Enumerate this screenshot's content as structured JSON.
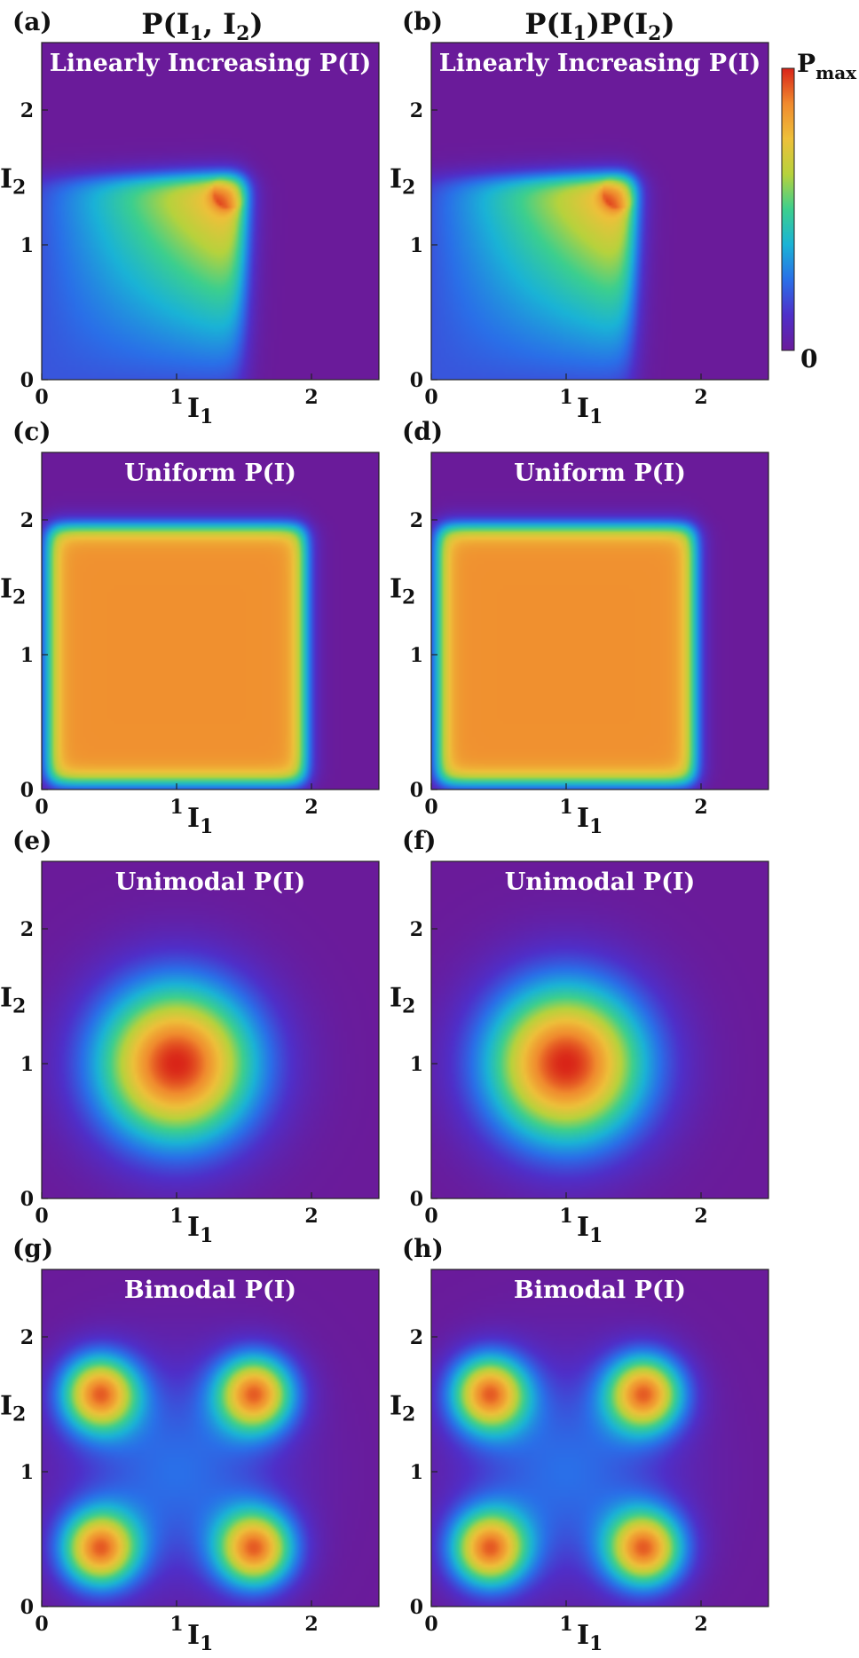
{
  "figure": {
    "column_titles": [
      "P(I₁, I₂)",
      "P(I₁)P(I₂)"
    ]
  },
  "colorbar": {
    "max_label": "Pmax",
    "min_label": "0",
    "colors": [
      "#6a1b9a",
      "#4f2fc9",
      "#2a6fe8",
      "#1ab3d6",
      "#3ccf8e",
      "#b7d23c",
      "#eec03a",
      "#f08a2e",
      "#d92418"
    ]
  },
  "chart_data": [
    {
      "type": "heatmap",
      "panel": "(a)",
      "subtitle": "Linearly Increasing P(I)",
      "xlabel": "I₁",
      "ylabel": "I₂",
      "xlim": [
        0,
        2.5
      ],
      "ylim": [
        0,
        2.5
      ],
      "xticks": [
        "0",
        "1",
        "2"
      ],
      "yticks": [
        "0",
        "1",
        "2"
      ],
      "distribution": "linear",
      "support": [
        0,
        1.5
      ],
      "peak": [
        1.35,
        1.35
      ]
    },
    {
      "type": "heatmap",
      "panel": "(b)",
      "subtitle": "Linearly Increasing P(I)",
      "xlabel": "I₁",
      "ylabel": "I₂",
      "xlim": [
        0,
        2.5
      ],
      "ylim": [
        0,
        2.5
      ],
      "xticks": [
        "0",
        "1",
        "2"
      ],
      "yticks": [
        "0",
        "1",
        "2"
      ],
      "distribution": "linear",
      "support": [
        0,
        1.5
      ],
      "peak": [
        1.35,
        1.35
      ]
    },
    {
      "type": "heatmap",
      "panel": "(c)",
      "subtitle": "Uniform P(I)",
      "xlabel": "I₁",
      "ylabel": "I₂",
      "xlim": [
        0,
        2.5
      ],
      "ylim": [
        0,
        2.5
      ],
      "xticks": [
        "0",
        "1",
        "2"
      ],
      "yticks": [
        "0",
        "1",
        "2"
      ],
      "distribution": "uniform",
      "support": [
        0,
        2
      ]
    },
    {
      "type": "heatmap",
      "panel": "(d)",
      "subtitle": "Uniform P(I)",
      "xlabel": "I₁",
      "ylabel": "I₂",
      "xlim": [
        0,
        2.5
      ],
      "ylim": [
        0,
        2.5
      ],
      "xticks": [
        "0",
        "1",
        "2"
      ],
      "yticks": [
        "0",
        "1",
        "2"
      ],
      "distribution": "uniform",
      "support": [
        0,
        2
      ]
    },
    {
      "type": "heatmap",
      "panel": "(e)",
      "subtitle": "Unimodal P(I)",
      "xlabel": "I₁",
      "ylabel": "I₂",
      "xlim": [
        0,
        2.5
      ],
      "ylim": [
        0,
        2.5
      ],
      "xticks": [
        "0",
        "1",
        "2"
      ],
      "yticks": [
        "0",
        "1",
        "2"
      ],
      "distribution": "unimodal",
      "peak": [
        1.0,
        1.0
      ]
    },
    {
      "type": "heatmap",
      "panel": "(f)",
      "subtitle": "Unimodal P(I)",
      "xlabel": "I₁",
      "ylabel": "I₂",
      "xlim": [
        0,
        2.5
      ],
      "ylim": [
        0,
        2.5
      ],
      "xticks": [
        "0",
        "1",
        "2"
      ],
      "yticks": [
        "0",
        "1",
        "2"
      ],
      "distribution": "unimodal",
      "peak": [
        1.0,
        1.0
      ]
    },
    {
      "type": "heatmap",
      "panel": "(g)",
      "subtitle": "Bimodal P(I)",
      "xlabel": "I₁",
      "ylabel": "I₂",
      "xlim": [
        0,
        2.5
      ],
      "ylim": [
        0,
        2.5
      ],
      "xticks": [
        "0",
        "1",
        "2"
      ],
      "yticks": [
        "0",
        "1",
        "2"
      ],
      "distribution": "bimodal",
      "peaks": [
        [
          0.42,
          0.42
        ],
        [
          1.6,
          0.42
        ],
        [
          0.42,
          1.6
        ],
        [
          1.6,
          1.6
        ]
      ]
    },
    {
      "type": "heatmap",
      "panel": "(h)",
      "subtitle": "Bimodal P(I)",
      "xlabel": "I₁",
      "ylabel": "I₂",
      "xlim": [
        0,
        2.5
      ],
      "ylim": [
        0,
        2.5
      ],
      "xticks": [
        "0",
        "1",
        "2"
      ],
      "yticks": [
        "0",
        "1",
        "2"
      ],
      "distribution": "bimodal",
      "peaks": [
        [
          0.45,
          0.45
        ],
        [
          1.58,
          0.45
        ],
        [
          0.45,
          1.58
        ],
        [
          1.58,
          1.58
        ]
      ]
    }
  ]
}
